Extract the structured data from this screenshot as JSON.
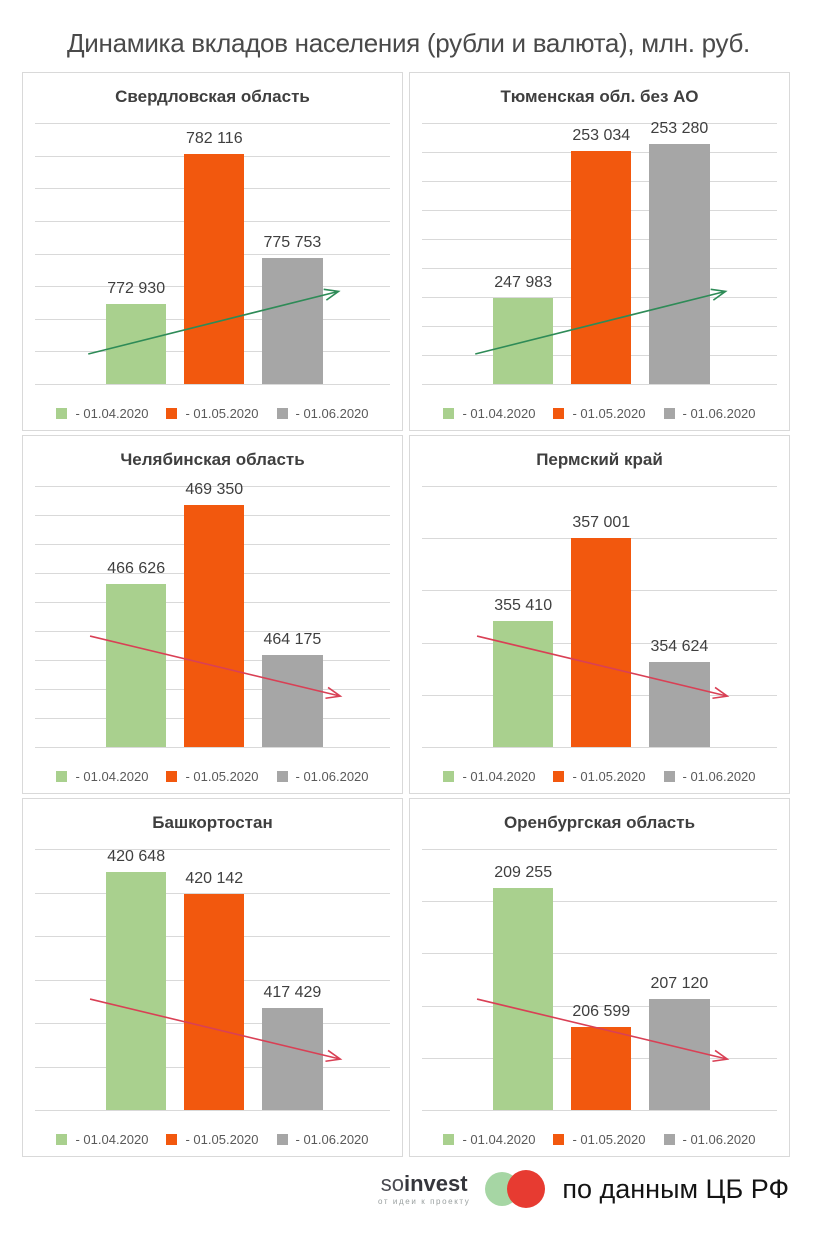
{
  "title": "Динамика вкладов населения (рубли и валюта), млн. руб.",
  "colors": {
    "bar_green": "#A9D08E",
    "bar_orange": "#F2580E",
    "bar_gray": "#A6A6A6",
    "trend_up": "#2E8B57",
    "trend_down": "#D94055",
    "gridline": "#D9D9D9"
  },
  "legend": [
    {
      "label": "- 01.04.2020",
      "color_key": "bar_green"
    },
    {
      "label": "- 01.05.2020",
      "color_key": "bar_orange"
    },
    {
      "label": "- 01.06.2020",
      "color_key": "bar_gray"
    }
  ],
  "chart_data": [
    {
      "type": "bar",
      "region": "Свердловская область",
      "categories": [
        "01.04.2020",
        "01.05.2020",
        "01.06.2020"
      ],
      "values": [
        772930,
        782116,
        775753
      ],
      "value_labels": [
        "772 930",
        "782 116",
        "775 753"
      ],
      "ylim": [
        768000,
        784000
      ],
      "gridline_count": 9,
      "trend": "up"
    },
    {
      "type": "bar",
      "region": "Тюменская обл. без АО",
      "categories": [
        "01.04.2020",
        "01.05.2020",
        "01.06.2020"
      ],
      "values": [
        247983,
        253034,
        253280
      ],
      "value_labels": [
        "247 983",
        "253 034",
        "253 280"
      ],
      "ylim": [
        245000,
        254000
      ],
      "gridline_count": 10,
      "trend": "up"
    },
    {
      "type": "bar",
      "region": "Челябинская область",
      "categories": [
        "01.04.2020",
        "01.05.2020",
        "01.06.2020"
      ],
      "values": [
        466626,
        469350,
        464175
      ],
      "value_labels": [
        "466 626",
        "469 350",
        "464 175"
      ],
      "ylim": [
        461000,
        470000
      ],
      "gridline_count": 10,
      "trend": "down"
    },
    {
      "type": "bar",
      "region": "Пермский край",
      "categories": [
        "01.04.2020",
        "01.05.2020",
        "01.06.2020"
      ],
      "values": [
        355410,
        357001,
        354624
      ],
      "value_labels": [
        "355 410",
        "357 001",
        "354 624"
      ],
      "ylim": [
        353000,
        358000
      ],
      "gridline_count": 6,
      "trend": "down"
    },
    {
      "type": "bar",
      "region": "Башкортостан",
      "categories": [
        "01.04.2020",
        "01.05.2020",
        "01.06.2020"
      ],
      "values": [
        420648,
        420142,
        417429
      ],
      "value_labels": [
        "420 648",
        "420 142",
        "417 429"
      ],
      "ylim": [
        415000,
        421200
      ],
      "gridline_count": 7,
      "trend": "down"
    },
    {
      "type": "bar",
      "region": "Оренбургская область",
      "categories": [
        "01.04.2020",
        "01.05.2020",
        "01.06.2020"
      ],
      "values": [
        209255,
        206599,
        207120
      ],
      "value_labels": [
        "209 255",
        "206 599",
        "207 120"
      ],
      "ylim": [
        205000,
        210000
      ],
      "gridline_count": 6,
      "trend": "down"
    }
  ],
  "footer": {
    "logo_so": "so",
    "logo_invest": "invest",
    "logo_tagline": "от идеи к проекту",
    "source": "по данным ЦБ РФ"
  }
}
